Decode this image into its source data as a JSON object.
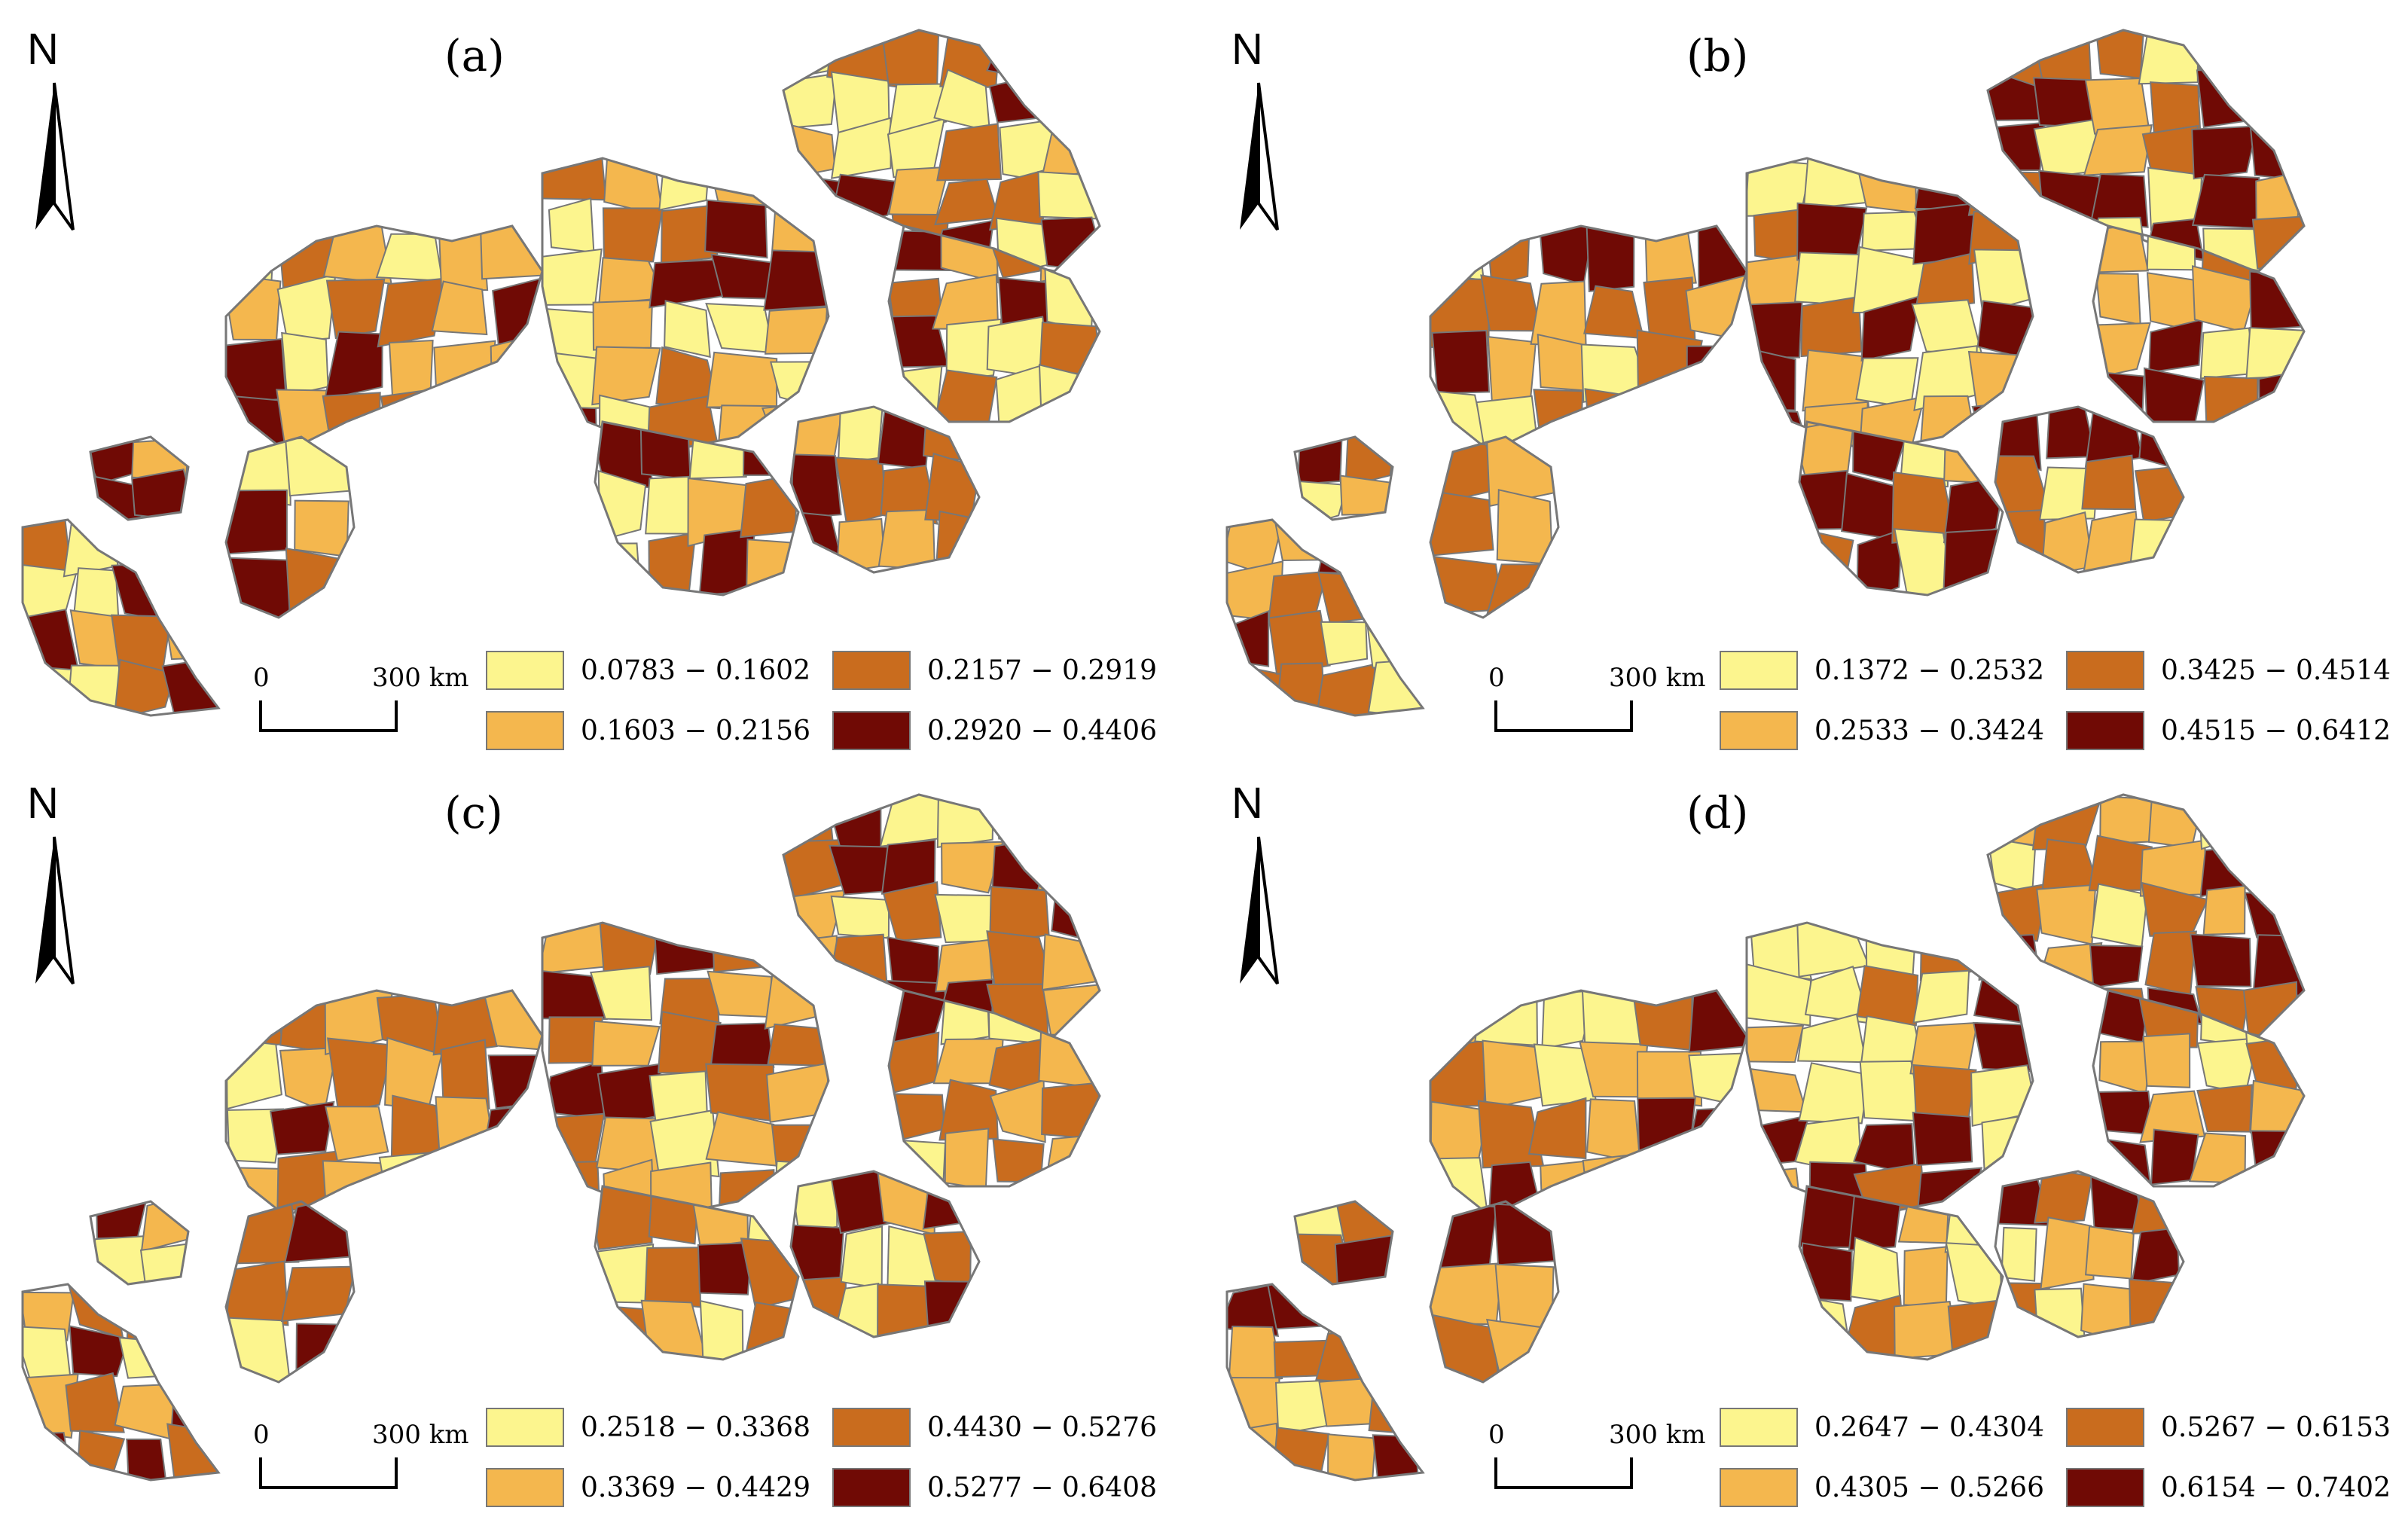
{
  "colors": {
    "class1": "#FCF58E",
    "class2": "#F4B74E",
    "class3": "#C96C1E",
    "class4": "#700A05",
    "border": "#777777"
  },
  "north_label": "N",
  "scale": {
    "zero": "0",
    "end": "300 km"
  },
  "panels": [
    {
      "label": "(a)",
      "legend": [
        "0.0783 − 0.1602",
        "0.1603 − 0.2156",
        "0.2157 − 0.2919",
        "0.2920 − 0.4406"
      ]
    },
    {
      "label": "(b)",
      "legend": [
        "0.1372 − 0.2532",
        "0.2533 − 0.3424",
        "0.3425 − 0.4514",
        "0.4515 − 0.6412"
      ]
    },
    {
      "label": "(c)",
      "legend": [
        "0.2518 − 0.3368",
        "0.3369 − 0.4429",
        "0.4430 − 0.5276",
        "0.5277 − 0.6408"
      ]
    },
    {
      "label": "(d)",
      "legend": [
        "0.2647 − 0.4304",
        "0.4305 − 0.5266",
        "0.5267 − 0.6153",
        "0.6154 − 0.7402"
      ]
    }
  ],
  "icons": {
    "north_arrow": "north-arrow-icon"
  }
}
